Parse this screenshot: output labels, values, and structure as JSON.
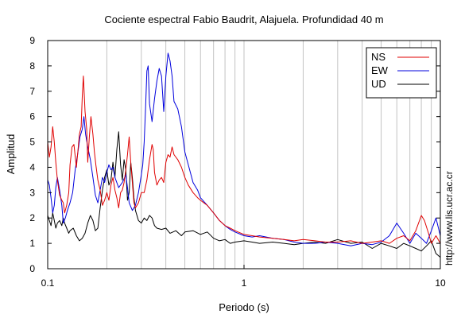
{
  "chart_data": {
    "type": "line",
    "title": "Cociente espectral Fabio Baudrit, Alajuela. Profundidad 40 m",
    "xlabel": "Periodo (s)",
    "ylabel": "Amplitud",
    "x_scale": "log",
    "xlim": [
      0.1,
      10
    ],
    "ylim": [
      0,
      9
    ],
    "x_tick_labels": [
      {
        "value": 0.1,
        "label": "0.1"
      },
      {
        "value": 1,
        "label": "1"
      },
      {
        "value": 10,
        "label": "10"
      }
    ],
    "y_tick_labels": [
      "0",
      "1",
      "2",
      "3",
      "4",
      "5",
      "6",
      "7",
      "8",
      "9"
    ],
    "grid": "vertical log gridlines",
    "legend_position": "top-right",
    "side_note": "http://www.lis.ucr.ac.cr",
    "series": [
      {
        "name": "NS",
        "color": "#e00000",
        "points": [
          [
            0.1,
            5.0
          ],
          [
            0.102,
            4.4
          ],
          [
            0.104,
            4.8
          ],
          [
            0.106,
            5.6
          ],
          [
            0.108,
            5.0
          ],
          [
            0.11,
            4.2
          ],
          [
            0.112,
            3.5
          ],
          [
            0.115,
            2.9
          ],
          [
            0.118,
            2.7
          ],
          [
            0.12,
            2.6
          ],
          [
            0.122,
            2.2
          ],
          [
            0.125,
            2.5
          ],
          [
            0.128,
            3.0
          ],
          [
            0.13,
            4.1
          ],
          [
            0.133,
            4.8
          ],
          [
            0.136,
            4.9
          ],
          [
            0.14,
            4.0
          ],
          [
            0.142,
            4.5
          ],
          [
            0.145,
            5.3
          ],
          [
            0.148,
            5.6
          ],
          [
            0.15,
            6.8
          ],
          [
            0.152,
            7.6
          ],
          [
            0.155,
            6.2
          ],
          [
            0.158,
            5.5
          ],
          [
            0.16,
            4.2
          ],
          [
            0.163,
            5.2
          ],
          [
            0.166,
            6.0
          ],
          [
            0.17,
            5.3
          ],
          [
            0.173,
            4.6
          ],
          [
            0.176,
            4.1
          ],
          [
            0.18,
            3.5
          ],
          [
            0.185,
            3.1
          ],
          [
            0.19,
            2.5
          ],
          [
            0.195,
            2.7
          ],
          [
            0.2,
            3.0
          ],
          [
            0.205,
            2.7
          ],
          [
            0.21,
            3.3
          ],
          [
            0.215,
            3.6
          ],
          [
            0.22,
            3.1
          ],
          [
            0.225,
            2.8
          ],
          [
            0.23,
            2.4
          ],
          [
            0.235,
            3.0
          ],
          [
            0.24,
            3.1
          ],
          [
            0.245,
            3.4
          ],
          [
            0.25,
            3.9
          ],
          [
            0.255,
            4.5
          ],
          [
            0.26,
            5.2
          ],
          [
            0.265,
            4.2
          ],
          [
            0.27,
            3.4
          ],
          [
            0.275,
            2.6
          ],
          [
            0.28,
            2.4
          ],
          [
            0.29,
            2.6
          ],
          [
            0.3,
            3.0
          ],
          [
            0.31,
            3.0
          ],
          [
            0.32,
            3.5
          ],
          [
            0.33,
            4.3
          ],
          [
            0.34,
            4.9
          ],
          [
            0.345,
            4.7
          ],
          [
            0.35,
            3.8
          ],
          [
            0.36,
            3.3
          ],
          [
            0.37,
            3.5
          ],
          [
            0.38,
            3.6
          ],
          [
            0.39,
            3.4
          ],
          [
            0.4,
            4.2
          ],
          [
            0.41,
            4.5
          ],
          [
            0.42,
            4.4
          ],
          [
            0.43,
            4.8
          ],
          [
            0.44,
            4.5
          ],
          [
            0.46,
            4.3
          ],
          [
            0.48,
            4.0
          ],
          [
            0.5,
            3.6
          ],
          [
            0.52,
            3.3
          ],
          [
            0.55,
            3.0
          ],
          [
            0.58,
            2.8
          ],
          [
            0.6,
            2.7
          ],
          [
            0.65,
            2.5
          ],
          [
            0.7,
            2.2
          ],
          [
            0.75,
            1.9
          ],
          [
            0.8,
            1.7
          ],
          [
            0.85,
            1.6
          ],
          [
            0.9,
            1.5
          ],
          [
            1.0,
            1.35
          ],
          [
            1.1,
            1.3
          ],
          [
            1.2,
            1.25
          ],
          [
            1.4,
            1.2
          ],
          [
            1.6,
            1.15
          ],
          [
            1.8,
            1.1
          ],
          [
            2.0,
            1.15
          ],
          [
            2.3,
            1.1
          ],
          [
            2.6,
            1.05
          ],
          [
            3.0,
            1.05
          ],
          [
            3.5,
            1.1
          ],
          [
            4.0,
            1.0
          ],
          [
            4.5,
            1.05
          ],
          [
            5.0,
            1.1
          ],
          [
            5.5,
            1.0
          ],
          [
            6.0,
            1.2
          ],
          [
            6.5,
            1.3
          ],
          [
            7.0,
            1.1
          ],
          [
            7.5,
            1.5
          ],
          [
            8.0,
            2.1
          ],
          [
            8.3,
            1.9
          ],
          [
            8.7,
            1.4
          ],
          [
            9.0,
            1.0
          ],
          [
            9.5,
            1.3
          ],
          [
            10.0,
            1.0
          ]
        ]
      },
      {
        "name": "EW",
        "color": "#0000dd",
        "points": [
          [
            0.1,
            3.5
          ],
          [
            0.102,
            3.3
          ],
          [
            0.104,
            2.8
          ],
          [
            0.106,
            2.2
          ],
          [
            0.108,
            2.5
          ],
          [
            0.11,
            3.2
          ],
          [
            0.112,
            3.6
          ],
          [
            0.115,
            3.1
          ],
          [
            0.118,
            2.5
          ],
          [
            0.12,
            1.8
          ],
          [
            0.123,
            2.0
          ],
          [
            0.126,
            2.3
          ],
          [
            0.13,
            2.6
          ],
          [
            0.134,
            3.0
          ],
          [
            0.138,
            3.9
          ],
          [
            0.142,
            4.5
          ],
          [
            0.146,
            5.2
          ],
          [
            0.15,
            5.5
          ],
          [
            0.153,
            6.0
          ],
          [
            0.156,
            5.3
          ],
          [
            0.16,
            4.8
          ],
          [
            0.165,
            4.3
          ],
          [
            0.17,
            3.6
          ],
          [
            0.175,
            2.9
          ],
          [
            0.18,
            2.6
          ],
          [
            0.185,
            3.1
          ],
          [
            0.19,
            3.6
          ],
          [
            0.195,
            3.4
          ],
          [
            0.2,
            3.8
          ],
          [
            0.205,
            4.1
          ],
          [
            0.21,
            3.9
          ],
          [
            0.215,
            4.0
          ],
          [
            0.22,
            3.6
          ],
          [
            0.23,
            3.2
          ],
          [
            0.24,
            3.4
          ],
          [
            0.25,
            3.7
          ],
          [
            0.255,
            3.2
          ],
          [
            0.26,
            2.6
          ],
          [
            0.27,
            2.3
          ],
          [
            0.28,
            2.5
          ],
          [
            0.29,
            3.0
          ],
          [
            0.3,
            3.7
          ],
          [
            0.305,
            4.1
          ],
          [
            0.31,
            5.0
          ],
          [
            0.315,
            6.3
          ],
          [
            0.32,
            7.8
          ],
          [
            0.325,
            8.0
          ],
          [
            0.33,
            6.5
          ],
          [
            0.34,
            5.8
          ],
          [
            0.35,
            6.7
          ],
          [
            0.36,
            7.4
          ],
          [
            0.37,
            7.9
          ],
          [
            0.38,
            7.6
          ],
          [
            0.39,
            6.2
          ],
          [
            0.4,
            7.6
          ],
          [
            0.41,
            8.5
          ],
          [
            0.42,
            8.2
          ],
          [
            0.43,
            7.6
          ],
          [
            0.44,
            6.6
          ],
          [
            0.46,
            6.3
          ],
          [
            0.48,
            5.6
          ],
          [
            0.5,
            4.6
          ],
          [
            0.52,
            4.1
          ],
          [
            0.55,
            3.4
          ],
          [
            0.58,
            3.1
          ],
          [
            0.6,
            2.8
          ],
          [
            0.65,
            2.5
          ],
          [
            0.7,
            2.2
          ],
          [
            0.75,
            1.9
          ],
          [
            0.8,
            1.7
          ],
          [
            0.85,
            1.55
          ],
          [
            0.9,
            1.45
          ],
          [
            1.0,
            1.3
          ],
          [
            1.1,
            1.25
          ],
          [
            1.2,
            1.3
          ],
          [
            1.4,
            1.2
          ],
          [
            1.6,
            1.15
          ],
          [
            1.8,
            1.05
          ],
          [
            2.0,
            1.0
          ],
          [
            2.3,
            1.0
          ],
          [
            2.6,
            1.05
          ],
          [
            3.0,
            1.0
          ],
          [
            3.5,
            0.9
          ],
          [
            4.0,
            1.0
          ],
          [
            4.5,
            0.95
          ],
          [
            5.0,
            1.05
          ],
          [
            5.5,
            1.3
          ],
          [
            6.0,
            1.8
          ],
          [
            6.5,
            1.4
          ],
          [
            7.0,
            1.0
          ],
          [
            7.5,
            1.4
          ],
          [
            8.0,
            1.2
          ],
          [
            8.5,
            1.0
          ],
          [
            9.0,
            1.5
          ],
          [
            9.5,
            2.0
          ],
          [
            10.0,
            1.3
          ]
        ]
      },
      {
        "name": "UD",
        "color": "#000000",
        "points": [
          [
            0.1,
            2.1
          ],
          [
            0.102,
            1.9
          ],
          [
            0.104,
            1.7
          ],
          [
            0.106,
            2.2
          ],
          [
            0.108,
            1.9
          ],
          [
            0.11,
            1.6
          ],
          [
            0.112,
            1.8
          ],
          [
            0.115,
            1.9
          ],
          [
            0.118,
            1.7
          ],
          [
            0.12,
            2.0
          ],
          [
            0.122,
            1.8
          ],
          [
            0.125,
            1.6
          ],
          [
            0.128,
            1.4
          ],
          [
            0.13,
            1.5
          ],
          [
            0.135,
            1.6
          ],
          [
            0.14,
            1.3
          ],
          [
            0.145,
            1.1
          ],
          [
            0.15,
            1.2
          ],
          [
            0.155,
            1.4
          ],
          [
            0.16,
            1.8
          ],
          [
            0.165,
            2.1
          ],
          [
            0.17,
            1.9
          ],
          [
            0.175,
            1.5
          ],
          [
            0.18,
            1.6
          ],
          [
            0.185,
            2.4
          ],
          [
            0.19,
            3.1
          ],
          [
            0.195,
            3.6
          ],
          [
            0.2,
            3.9
          ],
          [
            0.205,
            3.3
          ],
          [
            0.21,
            3.5
          ],
          [
            0.215,
            4.2
          ],
          [
            0.22,
            3.6
          ],
          [
            0.225,
            4.7
          ],
          [
            0.23,
            5.4
          ],
          [
            0.235,
            4.1
          ],
          [
            0.24,
            3.5
          ],
          [
            0.245,
            4.3
          ],
          [
            0.25,
            3.9
          ],
          [
            0.255,
            2.7
          ],
          [
            0.26,
            3.0
          ],
          [
            0.265,
            4.2
          ],
          [
            0.27,
            3.6
          ],
          [
            0.275,
            2.8
          ],
          [
            0.28,
            2.3
          ],
          [
            0.29,
            1.9
          ],
          [
            0.3,
            1.8
          ],
          [
            0.31,
            2.0
          ],
          [
            0.32,
            1.9
          ],
          [
            0.33,
            2.1
          ],
          [
            0.34,
            2.0
          ],
          [
            0.35,
            1.7
          ],
          [
            0.36,
            1.6
          ],
          [
            0.38,
            1.55
          ],
          [
            0.4,
            1.6
          ],
          [
            0.42,
            1.4
          ],
          [
            0.45,
            1.5
          ],
          [
            0.48,
            1.3
          ],
          [
            0.5,
            1.45
          ],
          [
            0.55,
            1.5
          ],
          [
            0.6,
            1.35
          ],
          [
            0.65,
            1.45
          ],
          [
            0.7,
            1.2
          ],
          [
            0.75,
            1.1
          ],
          [
            0.8,
            1.15
          ],
          [
            0.85,
            1.0
          ],
          [
            0.9,
            1.05
          ],
          [
            1.0,
            1.1
          ],
          [
            1.1,
            1.05
          ],
          [
            1.2,
            1.0
          ],
          [
            1.4,
            1.05
          ],
          [
            1.6,
            1.0
          ],
          [
            1.8,
            0.95
          ],
          [
            2.0,
            1.0
          ],
          [
            2.3,
            1.05
          ],
          [
            2.6,
            1.0
          ],
          [
            3.0,
            1.15
          ],
          [
            3.5,
            1.0
          ],
          [
            4.0,
            1.05
          ],
          [
            4.5,
            0.8
          ],
          [
            5.0,
            1.0
          ],
          [
            5.5,
            0.9
          ],
          [
            6.0,
            0.8
          ],
          [
            6.5,
            1.0
          ],
          [
            7.0,
            0.9
          ],
          [
            7.5,
            0.8
          ],
          [
            8.0,
            0.7
          ],
          [
            8.5,
            0.9
          ],
          [
            9.0,
            1.1
          ],
          [
            9.5,
            0.6
          ],
          [
            10.0,
            0.45
          ]
        ]
      }
    ]
  }
}
